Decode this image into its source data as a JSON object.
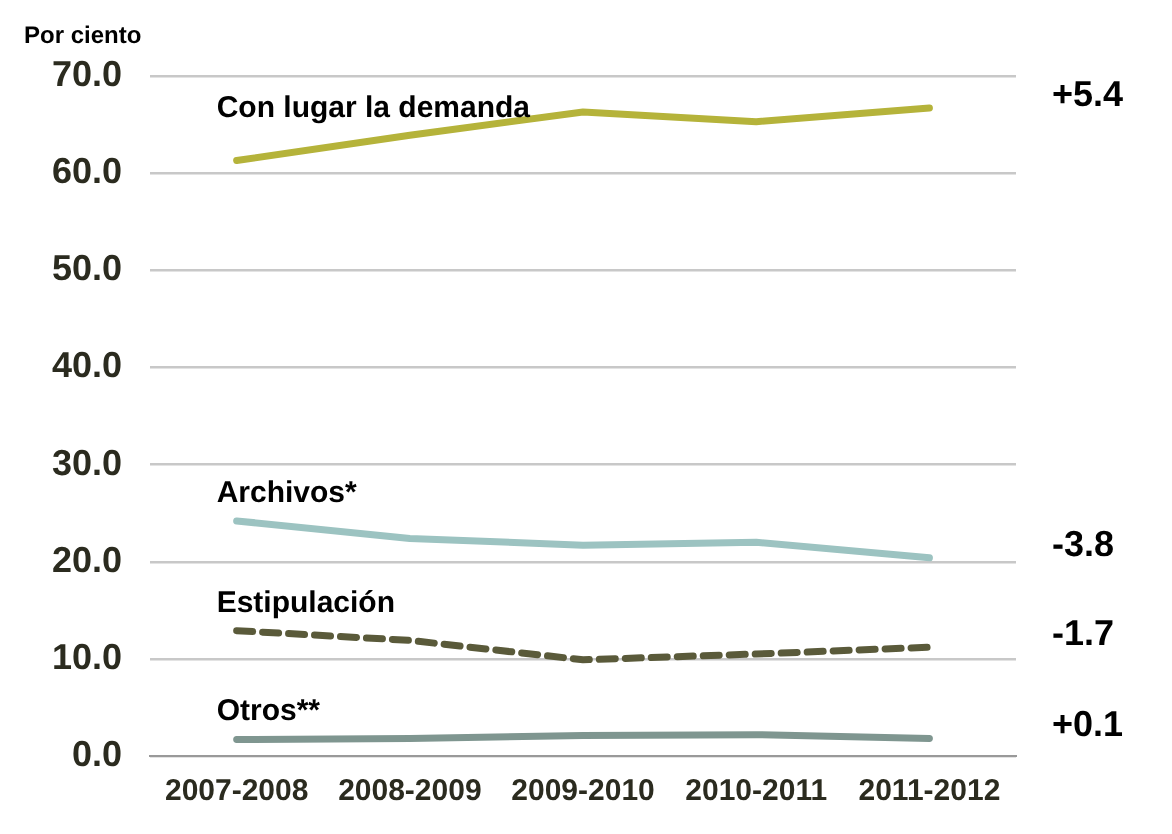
{
  "chart_data": {
    "type": "line",
    "ylabel": "Por ciento",
    "categories": [
      "2007-2008",
      "2008-2009",
      "2009-2010",
      "2010-2011",
      "2011-2012"
    ],
    "series": [
      {
        "name": "Con lugar la demanda",
        "color": "#b5b33a",
        "values": [
          61.3,
          63.9,
          66.3,
          65.3,
          66.7
        ]
      },
      {
        "name": "Archivos*",
        "color": "#9cc3c1",
        "values": [
          24.2,
          22.4,
          21.7,
          22.0,
          20.4
        ]
      },
      {
        "name": "Estipulación",
        "color": "#5a5a3a",
        "line_style": "dashed",
        "values": [
          12.9,
          11.9,
          9.9,
          10.5,
          11.2
        ]
      },
      {
        "name": "Otros**",
        "color": "#7f9690",
        "values": [
          1.7,
          1.8,
          2.1,
          2.2,
          1.8
        ]
      }
    ],
    "ylim": [
      0,
      70
    ],
    "yticks": [
      {
        "value": 0,
        "label": "0.0"
      },
      {
        "value": 10,
        "label": "10.0"
      },
      {
        "value": 20,
        "label": "20.0"
      },
      {
        "value": 30,
        "label": "30.0"
      },
      {
        "value": 40,
        "label": "40.0"
      },
      {
        "value": 50,
        "label": "50.0"
      },
      {
        "value": 60,
        "label": "60.0"
      },
      {
        "value": 70,
        "label": "70.0"
      }
    ],
    "grid": "y",
    "legend": false,
    "marker": "none",
    "annotations": [
      "+5.4",
      "-3.8",
      "-1.7",
      "+0.1"
    ]
  }
}
